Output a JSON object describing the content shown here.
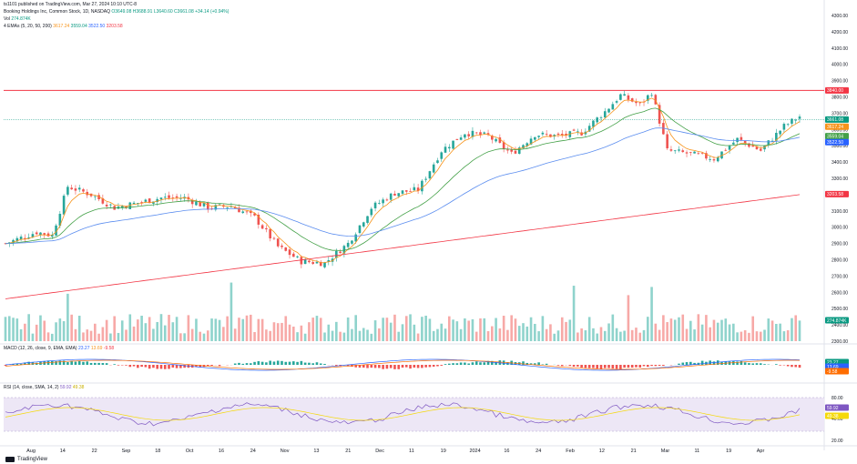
{
  "header": {
    "publisher": "ts1101 published on TradingView.com, Mar 27, 2024 10:10 UTC-8",
    "symbol_desc": "Booking Holdings Inc, Common Stock, 1D, NASDAQ",
    "ohlc": "O3649.08 H3688.91 L3640.60 C3661.08 +34.14 (+0.94%)",
    "vol_label": "Vol",
    "vol_value": "274.874K",
    "ema_label": "4 EMAs (5, 20, 50, 200)",
    "ema_vals": [
      "3617.24",
      "3559.04",
      "3522.50",
      "3203.58"
    ]
  },
  "macd": {
    "label": "MACD (12, 26, close, 9, EMA, EMA)",
    "vals": [
      "23.27",
      "13.69",
      "-9.58"
    ]
  },
  "rsi": {
    "label": "RSI (14, close, SMA, 14, 2)",
    "vals": [
      "59.92",
      "49.38"
    ]
  },
  "price_axis": [
    "4300.00",
    "4200.00",
    "4100.00",
    "4000.00",
    "3900.00",
    "3800.00",
    "3700.00",
    "3600.00",
    "3500.00",
    "3400.00",
    "3300.00",
    "3200.00",
    "3100.00",
    "3000.00",
    "2900.00",
    "2800.00",
    "2700.00",
    "2600.00",
    "2500.00",
    "2400.00",
    "2300.00"
  ],
  "price_tags": [
    {
      "text": "3840.00",
      "color": "#f23645"
    },
    {
      "text": "3661.08",
      "color": "#089981"
    },
    {
      "text": "3617.24",
      "color": "#f7931a"
    },
    {
      "text": "3559.04",
      "color": "#43a047"
    },
    {
      "text": "3522.50",
      "color": "#2962ff"
    },
    {
      "text": "3203.58",
      "color": "#f23645"
    },
    {
      "text": "274.874K",
      "color": "#089981"
    }
  ],
  "macd_tags": [
    {
      "text": "23.27",
      "color": "#089981"
    },
    {
      "text": "13.69",
      "color": "#2962ff"
    },
    {
      "text": "-9.58",
      "color": "#ff6d00"
    }
  ],
  "rsi_axis": [
    "80.00",
    "40.00",
    "20.00"
  ],
  "rsi_tags": [
    {
      "text": "59.92",
      "color": "#7e57c2"
    },
    {
      "text": "49.38",
      "color": "#f5d90a"
    }
  ],
  "x_axis": [
    "Aug",
    "14",
    "22",
    "Sep",
    "18",
    "Oct",
    "16",
    "24",
    "Nov",
    "13",
    "21",
    "Dec",
    "11",
    "19",
    "2024",
    "16",
    "24",
    "Feb",
    "12",
    "21",
    "Mar",
    "11",
    "19",
    "Apr"
  ],
  "footer": {
    "brand": "TradingView"
  },
  "colors": {
    "up": "#26a69a",
    "down": "#ef5350",
    "ema5": "#f7931a",
    "ema20": "#43a047",
    "ema50": "#5b8def",
    "ema200": "#f23645"
  }
}
